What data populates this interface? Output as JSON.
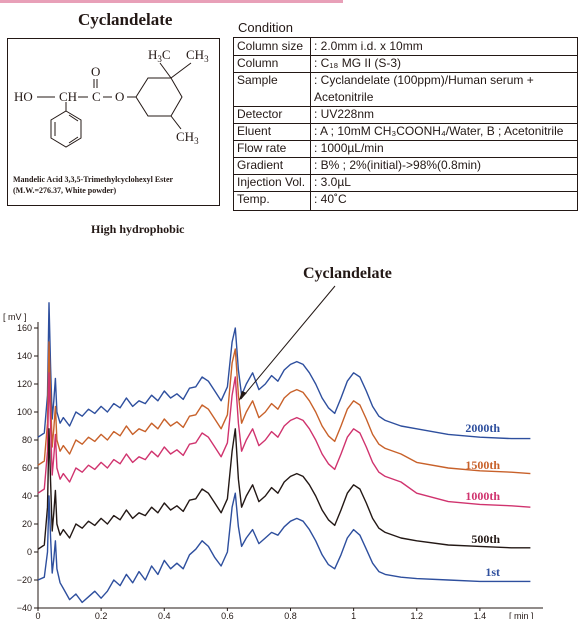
{
  "structure": {
    "title": "Cyclandelate",
    "name_line1": "Mandelic Acid 3,3,5-Trimethylcyclohexyl Ester",
    "name_line2": "(M.W.=276.37,  White powder)",
    "atoms": {
      "ho": "HO",
      "ch": "CH",
      "c": "C",
      "o_double": "O",
      "o_ester": "O",
      "h3c": "H",
      "h3c_sub": "3",
      "h3c_c": "C",
      "ch3_top": "CH",
      "ch3_top_sub": "3",
      "ch3_bottom": "CH",
      "ch3_bottom_sub": "3"
    }
  },
  "condition": {
    "title": "Condition",
    "rows": [
      {
        "label": "Column size",
        "value": ": 2.0mm i.d. x 10mm"
      },
      {
        "label": "Column",
        "value": ": C₁₈ MG II (S-3)"
      },
      {
        "label": "Sample",
        "value": ": Cyclandelate (100ppm)/Human serum +"
      },
      {
        "label": "",
        "value": "   Acetonitrile"
      },
      {
        "label": "Detector",
        "value": ": UV228nm"
      },
      {
        "label": "Eluent",
        "value": ": A ; 10mM CH₃COONH₄/Water, B ; Acetonitrile"
      },
      {
        "label": "Flow rate",
        "value": ": 1000µL/min"
      },
      {
        "label": "Gradient",
        "value": ": B% ; 2%(initial)->98%(0.8min)"
      },
      {
        "label": "Injection Vol.",
        "value": ": 3.0µL"
      },
      {
        "label": "Temp.",
        "value": ": 40˚C"
      }
    ]
  },
  "caption": "High hydrophobic",
  "chart_data": {
    "type": "line",
    "ylabel": "[ mV ]",
    "xlabel": "[ min ]",
    "xlim": [
      0,
      1.6
    ],
    "ylim": [
      -40,
      160
    ],
    "xticks": [
      0,
      0.2,
      0.4,
      0.6,
      0.8,
      1,
      1.2,
      1.4
    ],
    "xtick_labels": [
      "0",
      "0.2",
      "0.4",
      "0.6",
      "0.8",
      "1",
      "1.2",
      "1.4"
    ],
    "yticks": [
      -40,
      -20,
      0,
      20,
      40,
      60,
      80,
      100,
      120,
      140,
      160
    ],
    "ytick_labels": [
      "−40",
      "−20",
      "0",
      "20",
      "40",
      "60",
      "80",
      "100",
      "120",
      "140",
      "160"
    ],
    "annotation": "Cyclandelate",
    "series": [
      {
        "name": "2000th",
        "color": "#2e4f9e",
        "x": [
          0,
          0.02,
          0.03,
          0.035,
          0.04,
          0.045,
          0.05,
          0.055,
          0.06,
          0.07,
          0.08,
          0.1,
          0.12,
          0.14,
          0.16,
          0.18,
          0.2,
          0.22,
          0.24,
          0.26,
          0.28,
          0.3,
          0.32,
          0.34,
          0.36,
          0.38,
          0.4,
          0.42,
          0.44,
          0.46,
          0.48,
          0.5,
          0.52,
          0.54,
          0.56,
          0.58,
          0.6,
          0.615,
          0.625,
          0.635,
          0.645,
          0.66,
          0.68,
          0.7,
          0.72,
          0.74,
          0.76,
          0.78,
          0.8,
          0.82,
          0.84,
          0.86,
          0.88,
          0.9,
          0.92,
          0.94,
          0.96,
          0.98,
          1.0,
          1.02,
          1.04,
          1.06,
          1.08,
          1.1,
          1.15,
          1.2,
          1.3,
          1.4,
          1.5,
          1.56
        ],
        "y": [
          82,
          85,
          112,
          178,
          132,
          95,
          108,
          124,
          100,
          92,
          96,
          90,
          100,
          97,
          102,
          99,
          104,
          100,
          106,
          103,
          110,
          104,
          108,
          106,
          112,
          108,
          115,
          110,
          113,
          109,
          117,
          118,
          125,
          122,
          115,
          108,
          118,
          150,
          160,
          130,
          112,
          120,
          128,
          116,
          120,
          126,
          122,
          130,
          134,
          136,
          134,
          128,
          120,
          110,
          103,
          99,
          110,
          122,
          128,
          125,
          115,
          104,
          97,
          94,
          90,
          88,
          84,
          82,
          81,
          81
        ]
      },
      {
        "name": "1500th",
        "color": "#c8612a",
        "x": [
          0,
          0.02,
          0.03,
          0.035,
          0.04,
          0.045,
          0.05,
          0.055,
          0.06,
          0.07,
          0.08,
          0.1,
          0.12,
          0.14,
          0.16,
          0.18,
          0.2,
          0.22,
          0.24,
          0.26,
          0.28,
          0.3,
          0.32,
          0.34,
          0.36,
          0.38,
          0.4,
          0.42,
          0.44,
          0.46,
          0.48,
          0.5,
          0.52,
          0.54,
          0.56,
          0.58,
          0.6,
          0.615,
          0.625,
          0.635,
          0.645,
          0.66,
          0.68,
          0.7,
          0.72,
          0.74,
          0.76,
          0.78,
          0.8,
          0.82,
          0.84,
          0.86,
          0.88,
          0.9,
          0.92,
          0.94,
          0.96,
          0.98,
          1.0,
          1.02,
          1.04,
          1.06,
          1.08,
          1.1,
          1.15,
          1.2,
          1.3,
          1.4,
          1.5,
          1.56
        ],
        "y": [
          62,
          65,
          92,
          150,
          110,
          75,
          88,
          104,
          80,
          72,
          76,
          70,
          80,
          77,
          82,
          79,
          84,
          80,
          86,
          83,
          90,
          84,
          88,
          86,
          92,
          88,
          95,
          90,
          93,
          89,
          97,
          98,
          105,
          102,
          95,
          88,
          98,
          135,
          145,
          112,
          92,
          100,
          108,
          96,
          100,
          106,
          102,
          110,
          114,
          116,
          114,
          108,
          100,
          90,
          83,
          79,
          90,
          102,
          108,
          105,
          95,
          84,
          77,
          74,
          70,
          64,
          60,
          58,
          57,
          56
        ]
      },
      {
        "name": "1000th",
        "color": "#d0336e",
        "x": [
          0,
          0.02,
          0.03,
          0.035,
          0.04,
          0.045,
          0.05,
          0.055,
          0.06,
          0.07,
          0.08,
          0.1,
          0.12,
          0.14,
          0.16,
          0.18,
          0.2,
          0.22,
          0.24,
          0.26,
          0.28,
          0.3,
          0.32,
          0.34,
          0.36,
          0.38,
          0.4,
          0.42,
          0.44,
          0.46,
          0.48,
          0.5,
          0.52,
          0.54,
          0.56,
          0.58,
          0.6,
          0.615,
          0.625,
          0.635,
          0.645,
          0.66,
          0.68,
          0.7,
          0.72,
          0.74,
          0.76,
          0.78,
          0.8,
          0.82,
          0.84,
          0.86,
          0.88,
          0.9,
          0.92,
          0.94,
          0.96,
          0.98,
          1.0,
          1.02,
          1.04,
          1.06,
          1.08,
          1.1,
          1.15,
          1.2,
          1.3,
          1.4,
          1.5,
          1.56
        ],
        "y": [
          42,
          45,
          72,
          128,
          90,
          55,
          68,
          84,
          60,
          52,
          56,
          50,
          60,
          57,
          62,
          59,
          64,
          60,
          66,
          63,
          70,
          64,
          68,
          66,
          72,
          68,
          75,
          70,
          73,
          69,
          77,
          78,
          85,
          82,
          75,
          68,
          78,
          112,
          125,
          92,
          72,
          80,
          88,
          76,
          80,
          86,
          82,
          90,
          94,
          96,
          94,
          88,
          80,
          70,
          63,
          59,
          70,
          82,
          88,
          85,
          75,
          64,
          57,
          54,
          50,
          42,
          36,
          34,
          33,
          32
        ]
      },
      {
        "name": "500th",
        "color": "#231815",
        "x": [
          0,
          0.02,
          0.03,
          0.035,
          0.04,
          0.045,
          0.05,
          0.055,
          0.06,
          0.07,
          0.08,
          0.1,
          0.12,
          0.14,
          0.16,
          0.18,
          0.2,
          0.22,
          0.24,
          0.26,
          0.28,
          0.3,
          0.32,
          0.34,
          0.36,
          0.38,
          0.4,
          0.42,
          0.44,
          0.46,
          0.48,
          0.5,
          0.52,
          0.54,
          0.56,
          0.58,
          0.6,
          0.615,
          0.625,
          0.635,
          0.645,
          0.66,
          0.68,
          0.7,
          0.72,
          0.74,
          0.76,
          0.78,
          0.8,
          0.82,
          0.84,
          0.86,
          0.88,
          0.9,
          0.92,
          0.94,
          0.96,
          0.98,
          1.0,
          1.02,
          1.04,
          1.06,
          1.08,
          1.1,
          1.15,
          1.2,
          1.3,
          1.4,
          1.5,
          1.56
        ],
        "y": [
          2,
          5,
          32,
          88,
          50,
          15,
          28,
          44,
          20,
          12,
          16,
          10,
          20,
          17,
          22,
          19,
          24,
          20,
          26,
          23,
          30,
          24,
          28,
          26,
          32,
          28,
          35,
          30,
          33,
          29,
          37,
          38,
          45,
          42,
          35,
          28,
          38,
          72,
          88,
          52,
          32,
          40,
          48,
          36,
          40,
          46,
          42,
          50,
          54,
          56,
          54,
          48,
          40,
          30,
          23,
          19,
          30,
          42,
          48,
          45,
          35,
          24,
          17,
          14,
          10,
          8,
          5,
          4,
          3,
          3
        ]
      },
      {
        "name": "1st",
        "color": "#2e4f9e",
        "x": [
          0,
          0.02,
          0.03,
          0.035,
          0.04,
          0.045,
          0.05,
          0.055,
          0.06,
          0.07,
          0.08,
          0.1,
          0.12,
          0.14,
          0.16,
          0.18,
          0.2,
          0.22,
          0.24,
          0.26,
          0.28,
          0.3,
          0.32,
          0.34,
          0.36,
          0.38,
          0.4,
          0.42,
          0.44,
          0.46,
          0.48,
          0.5,
          0.52,
          0.54,
          0.56,
          0.58,
          0.6,
          0.615,
          0.625,
          0.635,
          0.645,
          0.66,
          0.68,
          0.7,
          0.72,
          0.74,
          0.76,
          0.78,
          0.8,
          0.82,
          0.84,
          0.86,
          0.88,
          0.9,
          0.92,
          0.94,
          0.96,
          0.98,
          1.0,
          1.02,
          1.04,
          1.06,
          1.08,
          1.1,
          1.15,
          1.2,
          1.3,
          1.4,
          1.5,
          1.56
        ],
        "y": [
          -20,
          -18,
          0,
          40,
          10,
          -15,
          -5,
          8,
          -12,
          -22,
          -26,
          -34,
          -30,
          -36,
          -32,
          -28,
          -33,
          -28,
          -20,
          -24,
          -16,
          -22,
          -14,
          -20,
          -10,
          -16,
          -6,
          -12,
          -8,
          -12,
          -2,
          2,
          8,
          4,
          -4,
          -10,
          0,
          32,
          42,
          18,
          4,
          10,
          16,
          6,
          10,
          14,
          12,
          18,
          22,
          24,
          22,
          16,
          8,
          -2,
          -9,
          -12,
          -2,
          10,
          16,
          12,
          2,
          -8,
          -14,
          -16,
          -18,
          -19,
          -20,
          -21,
          -21,
          -21
        ]
      }
    ]
  }
}
